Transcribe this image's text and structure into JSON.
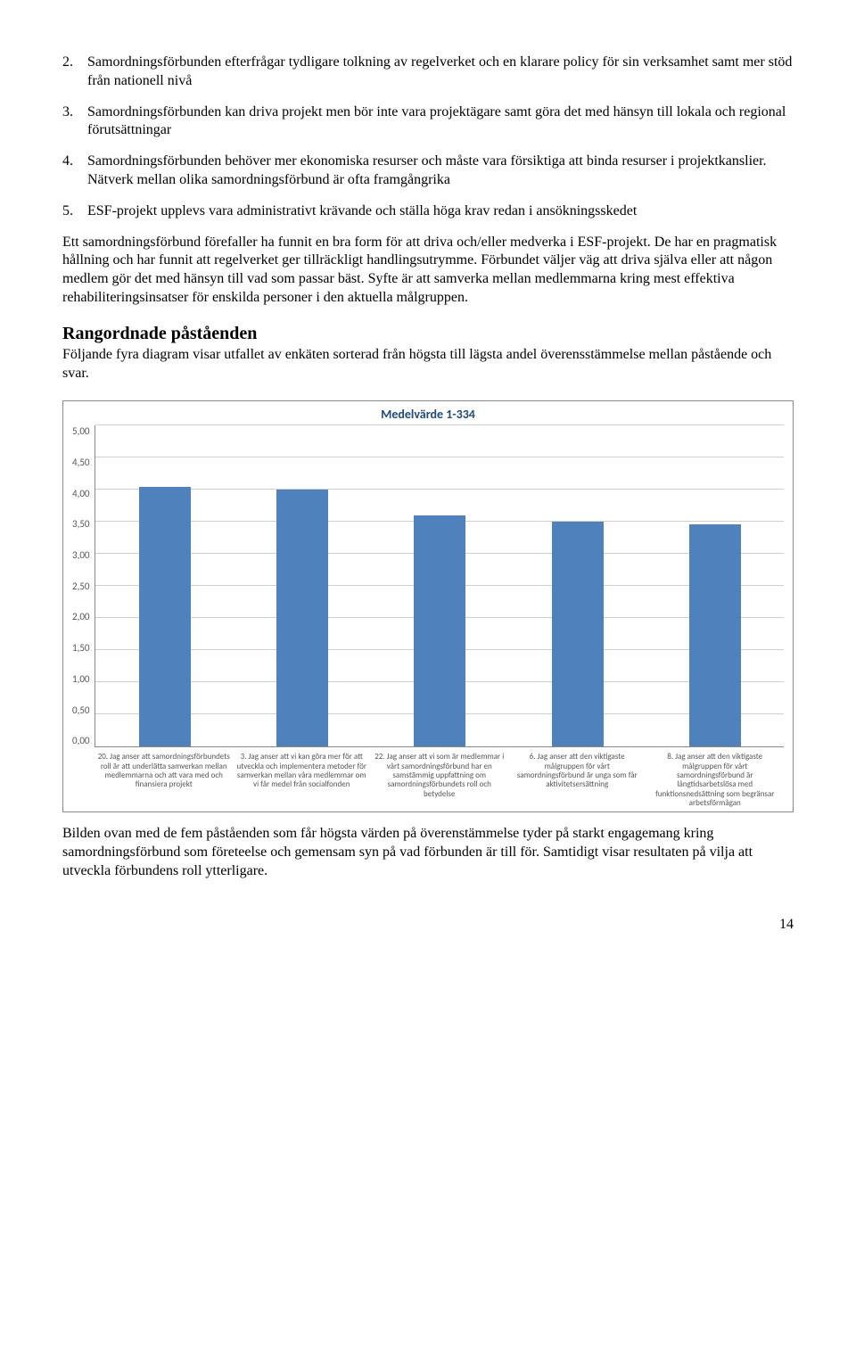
{
  "list": [
    {
      "num": "2.",
      "text": "Samordningsförbunden efterfrågar tydligare tolkning av regelverket och en klarare policy för sin verksamhet samt mer stöd från nationell nivå"
    },
    {
      "num": "3.",
      "text": "Samordningsförbunden kan driva projekt men bör inte vara projektägare samt göra det med hänsyn till lokala och regional förutsättningar"
    },
    {
      "num": "4.",
      "text": "Samordningsförbunden behöver mer ekonomiska resurser och måste vara försiktiga att binda resurser i projektkanslier. Nätverk mellan olika samordningsförbund är ofta framgångrika"
    },
    {
      "num": "5.",
      "text": "ESF-projekt upplevs vara administrativt krävande och ställa höga krav redan i ansökningsskedet"
    }
  ],
  "para1": "Ett samordningsförbund förefaller ha funnit en bra form för att driva och/eller medverka i ESF-projekt. De har en pragmatisk hållning och har funnit att regelverket ger tillräckligt handlingsutrymme. Förbundet väljer väg att driva själva eller att någon medlem gör det med hänsyn till vad som passar bäst. Syfte är att samverka mellan medlemmarna kring mest effektiva rehabiliteringsinsatser för enskilda personer i den aktuella målgruppen.",
  "section_heading": "Rangordnade påståenden",
  "section_intro": "Följande fyra diagram visar utfallet av enkäten sorterad från högsta till lägsta andel överensstämmelse mellan påstående och svar.",
  "chart": {
    "title": "Medelvärde 1-334",
    "ymax": 5.0,
    "ystep": 0.5,
    "yticks": [
      "5,00",
      "4,50",
      "4,00",
      "3,50",
      "3,00",
      "2,50",
      "2,00",
      "1,50",
      "1,00",
      "0,50",
      "0,00"
    ],
    "grid_color": "#d0d0d0",
    "bar_color": "#4f81bd",
    "bars": [
      {
        "label": "20. Jag anser att samordningsförbundets roll är att underlätta samverkan mellan medlemmarna och att vara med och finansiera projekt",
        "value": 4.05
      },
      {
        "label": "3. Jag anser att vi kan göra mer för att utveckla och implementera metoder för samverkan mellan våra medlemmar om vi får medel från socialfonden",
        "value": 4.0
      },
      {
        "label": "22. Jag anser att vi som är medlemmar i vårt samordningsförbund har en samstämmig uppfattning om samordningsförbundets roll och betydelse",
        "value": 3.6
      },
      {
        "label": "6. Jag anser att den viktigaste målgruppen för vårt samordningsförbund är unga som får aktivitetsersättning",
        "value": 3.5
      },
      {
        "label": "8. Jag anser att den viktigaste målgruppen för vårt samordningsförbund är långtidsarbetslösa med funktionsnedsättning som begränsar arbetsförmågan",
        "value": 3.47
      }
    ]
  },
  "para2": "Bilden ovan med de fem påståenden som får högsta värden på överenstämmelse tyder på starkt engagemang kring samordningsförbund som företeelse och gemensam syn på vad förbunden är till för. Samtidigt visar resultaten på vilja att utveckla förbundens roll ytterligare.",
  "page_number": "14"
}
